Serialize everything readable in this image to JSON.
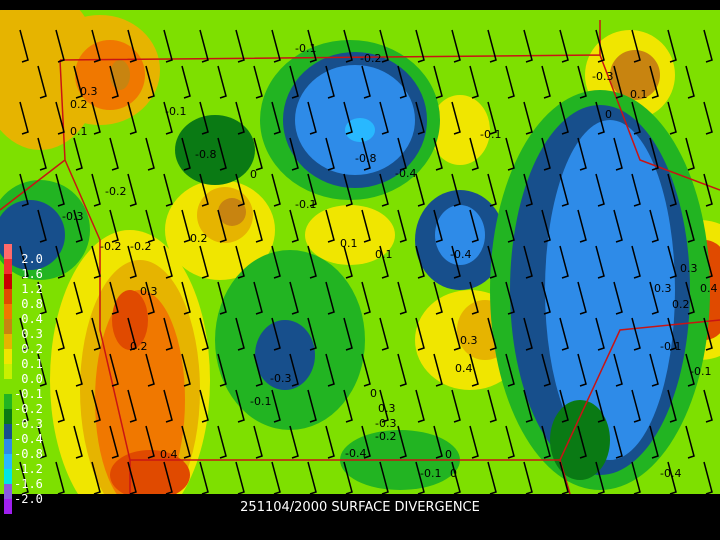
{
  "title": "251104/2000 SURFACE DIVERGENCE",
  "legend": {
    "labels": [
      "2.0",
      "1.6",
      "1.2",
      "0.8",
      "0.4",
      "0.3",
      "0.2",
      "0.1",
      "0.0",
      "-0.1",
      "-0.2",
      "-0.3",
      "-0.4",
      "-0.8",
      "-1.2",
      "-1.6",
      "-2.0"
    ],
    "colors": [
      "#ff6a6a",
      "#f03030",
      "#c80000",
      "#e04a00",
      "#f07800",
      "#c88410",
      "#e6b400",
      "#f0e600",
      "#c8f000",
      "#7ee000",
      "#22b422",
      "#0a7a14",
      "#174f8c",
      "#2e8be8",
      "#28b8ff",
      "#00e6e6",
      "#8a5ae0",
      "#a020f0"
    ]
  },
  "contour_labels": [
    "-0.3",
    "-0.1",
    "-0.2",
    "-0.1",
    "0.3",
    "0.2",
    "0.1",
    "-0.8",
    "-0.8",
    "-0.4",
    "0",
    "-0.1",
    "0.3",
    "0.2",
    "0.1",
    "-0.2",
    "-0.3",
    "-0.1",
    "0.2",
    "0.1",
    "0",
    "-0.4",
    "-0.2",
    "0.3",
    "0.4",
    "-0.3",
    "-0.2",
    "0.3",
    "0.1",
    "0",
    "-0.1",
    "-0.2",
    "-0.3",
    "-0.4",
    "0.4",
    "-0.1",
    "0",
    "0.3",
    "-0.4",
    "-0.1",
    "0.3",
    "0.2",
    "0.4",
    "-0.1",
    "0"
  ],
  "colors": {
    "border": "#c81414",
    "contour": "#000000",
    "barb": "#000000"
  }
}
